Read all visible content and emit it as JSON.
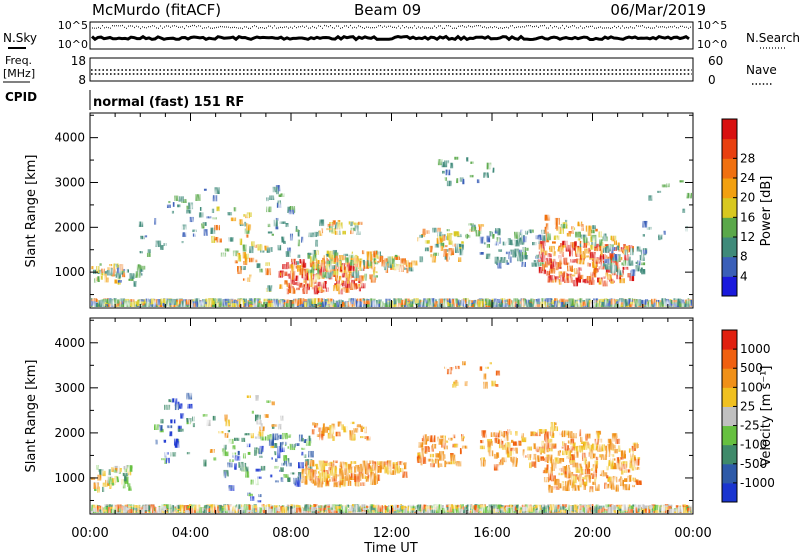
{
  "header": {
    "station": "McMurdo (fitACF)",
    "beam": "Beam 09",
    "date": "06/Mar/2019"
  },
  "noise_panel": {
    "left_label": "N.Sky",
    "right_label": "N.Search",
    "tick_top": "10^5",
    "tick_bottom": "10^0"
  },
  "freq_panel": {
    "left_label_line1": "Freq.",
    "left_label_line2": "[MHz]",
    "right_label": "Nave",
    "left_ticks": [
      "18",
      "8"
    ],
    "right_ticks": [
      "60",
      "0"
    ]
  },
  "cpid": {
    "label": "CPID",
    "mode": "normal (fast) 151 RF"
  },
  "x_axis": {
    "label": "Time UT",
    "ticks": [
      "00:00",
      "04:00",
      "08:00",
      "12:00",
      "16:00",
      "20:00",
      "00:00"
    ]
  },
  "chart_data": [
    {
      "type": "heatmap",
      "name": "power",
      "ylabel": "Slant Range [km]",
      "y_ticks": [
        1000,
        2000,
        3000,
        4000
      ],
      "ylim": [
        200,
        4550
      ],
      "xlim_hours": [
        0,
        24
      ],
      "colorbar": {
        "label": "Power [dB]",
        "tick_labels": [
          "4",
          "8",
          "12",
          "16",
          "20",
          "24",
          "28"
        ],
        "colors": [
          "#1a1adc",
          "#3a5fb8",
          "#3f8a7a",
          "#5aa84a",
          "#d8c820",
          "#f2a010",
          "#f07010",
          "#e84010",
          "#d81010"
        ]
      }
    },
    {
      "type": "heatmap",
      "name": "velocity",
      "ylabel": "Slant Range [km]",
      "y_ticks": [
        1000,
        2000,
        3000,
        4000
      ],
      "ylim": [
        200,
        4550
      ],
      "xlim_hours": [
        0,
        24
      ],
      "colorbar": {
        "label": "Velocity [m s⁻¹]",
        "tick_labels": [
          "1000",
          "500",
          "100",
          "25",
          "-25",
          "-100",
          "-500",
          "-1000"
        ],
        "colors": [
          "#1a35d0",
          "#2e5aa8",
          "#3f8a6a",
          "#66c040",
          "#c0c0c0",
          "#f0c020",
          "#f09018",
          "#f06010",
          "#e02010"
        ]
      }
    }
  ]
}
